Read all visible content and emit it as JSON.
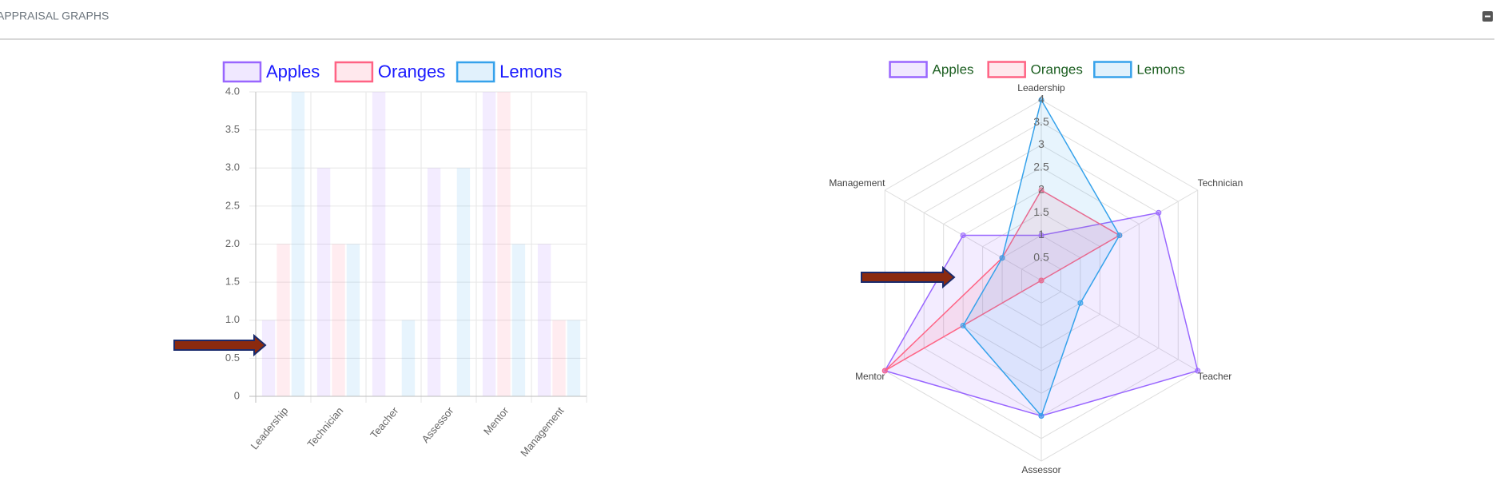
{
  "header": {
    "title": "APPRAISAL GRAPHS"
  },
  "chart_data": [
    {
      "type": "bar",
      "categories": [
        "Leadership",
        "Technician",
        "Teacher",
        "Assessor",
        "Mentor",
        "Management"
      ],
      "series": [
        {
          "name": "Apples",
          "color": "#9966ff",
          "values": [
            1,
            3,
            4,
            3,
            4,
            2
          ]
        },
        {
          "name": "Oranges",
          "color": "#ff6384",
          "values": [
            2,
            2,
            0,
            0,
            4,
            1
          ]
        },
        {
          "name": "Lemons",
          "color": "#36a2eb",
          "values": [
            4,
            2,
            1,
            3,
            2,
            1
          ]
        }
      ],
      "ylim": [
        0,
        4
      ],
      "yticks": [
        0,
        0.5,
        {
          "value": 1,
          "label": "1.0"
        },
        1.5,
        {
          "value": 2,
          "label": "2.0"
        },
        2.5,
        {
          "value": 3,
          "label": "3.0"
        },
        3.5,
        {
          "value": 4,
          "label": "4.0"
        }
      ],
      "grid": true,
      "legend": "top"
    },
    {
      "type": "radar",
      "categories": [
        "Leadership",
        "Technician",
        "Teacher",
        "Assessor",
        "Mentor",
        "Management"
      ],
      "series": [
        {
          "name": "Apples",
          "color": "#9966ff",
          "values": [
            1,
            3,
            4,
            3,
            4,
            2
          ]
        },
        {
          "name": "Oranges",
          "color": "#ff6384",
          "values": [
            2,
            2,
            0,
            0,
            4,
            1
          ]
        },
        {
          "name": "Lemons",
          "color": "#36a2eb",
          "values": [
            4,
            2,
            1,
            3,
            2,
            1
          ]
        }
      ],
      "rlim": [
        0,
        4
      ],
      "rticks": [
        0.5,
        1,
        1.5,
        2,
        2.5,
        3,
        3.5,
        4
      ],
      "grid": true,
      "legend": "top"
    }
  ]
}
